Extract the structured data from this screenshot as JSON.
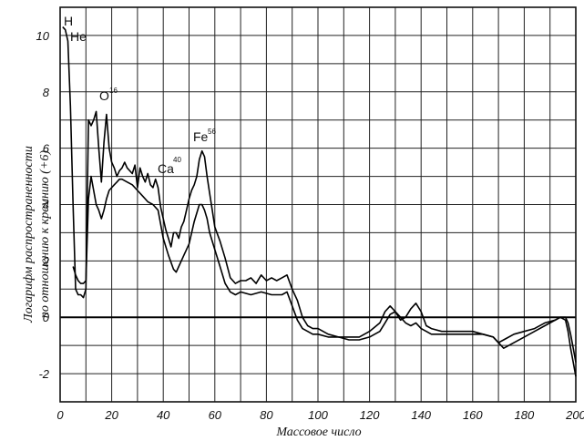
{
  "chart_data": {
    "type": "line",
    "title": "",
    "xlabel": "Массовое число",
    "ylabel": [
      "Логарифм распространенности",
      "по отношению к кремнию (+6)"
    ],
    "xlim": [
      0,
      200
    ],
    "ylim": [
      -3,
      11
    ],
    "x_ticks": [
      0,
      20,
      40,
      60,
      80,
      100,
      120,
      140,
      160,
      180,
      200
    ],
    "y_ticks": [
      10,
      8,
      6,
      4,
      2,
      0,
      -2
    ],
    "grid": true,
    "annotations": [
      {
        "text": "H",
        "sup": ""
      },
      {
        "text": "He",
        "sup": ""
      },
      {
        "text": "O",
        "sup": "16"
      },
      {
        "text": "Ca",
        "sup": "40"
      },
      {
        "text": "Fe",
        "sup": "56"
      }
    ],
    "series": [
      {
        "x": [
          1,
          2,
          3,
          4,
          5,
          6,
          7,
          8,
          9,
          10,
          11,
          12,
          13,
          14,
          15,
          16,
          17,
          18,
          19,
          20,
          21,
          22,
          23,
          24,
          25,
          26,
          27,
          28,
          29,
          30,
          31,
          32,
          33,
          34,
          35,
          36,
          37,
          38,
          39,
          40,
          41,
          42,
          43,
          44,
          45,
          46,
          47,
          48,
          49,
          50,
          51,
          52,
          53,
          54,
          55,
          56,
          57,
          58,
          59,
          60,
          62,
          64,
          66,
          68,
          70,
          72,
          74,
          76,
          78,
          80,
          82,
          84,
          86,
          88,
          90,
          92,
          94,
          96,
          98,
          100,
          104,
          108,
          112,
          116,
          120,
          124,
          126,
          128,
          130,
          132,
          134,
          136,
          138,
          140,
          142,
          144,
          148,
          152,
          156,
          160,
          164,
          168,
          170,
          172,
          176,
          180,
          184,
          188,
          192,
          194,
          196,
          197,
          198,
          199,
          200
        ],
        "values": [
          10.3,
          10.2,
          9.8,
          7.5,
          4.0,
          1.0,
          0.8,
          0.8,
          0.7,
          1.0,
          7.0,
          6.8,
          7.0,
          7.3,
          6.0,
          4.8,
          6.2,
          7.2,
          6.0,
          5.5,
          5.3,
          5.0,
          5.2,
          5.3,
          5.5,
          5.3,
          5.2,
          5.1,
          5.4,
          4.6,
          5.3,
          5.0,
          4.8,
          5.1,
          4.7,
          4.6,
          4.9,
          4.6,
          3.9,
          3.5,
          3.1,
          2.8,
          2.5,
          3.0,
          3.0,
          2.8,
          3.2,
          3.4,
          3.8,
          4.2,
          4.5,
          4.7,
          5.0,
          5.6,
          5.9,
          5.7,
          5.0,
          4.4,
          3.8,
          3.2,
          2.7,
          2.1,
          1.4,
          1.2,
          1.3,
          1.3,
          1.4,
          1.2,
          1.5,
          1.3,
          1.4,
          1.3,
          1.4,
          1.5,
          1.0,
          0.6,
          0.0,
          -0.3,
          -0.4,
          -0.4,
          -0.6,
          -0.7,
          -0.7,
          -0.7,
          -0.5,
          -0.2,
          0.2,
          0.4,
          0.2,
          -0.1,
          0.0,
          0.3,
          0.5,
          0.2,
          -0.3,
          -0.4,
          -0.5,
          -0.5,
          -0.5,
          -0.5,
          -0.6,
          -0.7,
          -0.9,
          -0.8,
          -0.6,
          -0.5,
          -0.4,
          -0.2,
          -0.1,
          0.0,
          -0.1,
          -0.5,
          -1.1,
          -1.6,
          -2.1
        ]
      },
      {
        "x": [
          5,
          6,
          7,
          8,
          9,
          10,
          11,
          12,
          13,
          14,
          15,
          16,
          17,
          18,
          19,
          20,
          21,
          22,
          23,
          24,
          26,
          28,
          30,
          32,
          34,
          36,
          38,
          40,
          42,
          44,
          45,
          46,
          48,
          50,
          52,
          54,
          55,
          56,
          57,
          58,
          60,
          62,
          64,
          66,
          68,
          70,
          74,
          78,
          82,
          86,
          88,
          90,
          92,
          94,
          96,
          98,
          100,
          104,
          108,
          112,
          116,
          120,
          124,
          126,
          128,
          130,
          132,
          134,
          136,
          138,
          140,
          142,
          144,
          148,
          152,
          156,
          160,
          164,
          168,
          170,
          172,
          176,
          180,
          184,
          188,
          192,
          194,
          196,
          197,
          198,
          199,
          200
        ],
        "values": [
          1.8,
          1.5,
          1.3,
          1.2,
          1.2,
          1.3,
          4.2,
          5.0,
          4.5,
          4.0,
          3.8,
          3.5,
          3.8,
          4.2,
          4.5,
          4.6,
          4.7,
          4.8,
          4.9,
          4.9,
          4.8,
          4.7,
          4.5,
          4.3,
          4.1,
          4.0,
          3.8,
          2.8,
          2.2,
          1.7,
          1.6,
          1.8,
          2.2,
          2.6,
          3.4,
          4.0,
          4.0,
          3.8,
          3.5,
          3.0,
          2.4,
          1.8,
          1.2,
          0.9,
          0.8,
          0.9,
          0.8,
          0.9,
          0.8,
          0.8,
          0.9,
          0.4,
          -0.1,
          -0.4,
          -0.5,
          -0.6,
          -0.6,
          -0.7,
          -0.7,
          -0.8,
          -0.8,
          -0.7,
          -0.5,
          -0.2,
          0.1,
          0.2,
          0.0,
          -0.2,
          -0.3,
          -0.2,
          -0.4,
          -0.5,
          -0.6,
          -0.6,
          -0.6,
          -0.6,
          -0.6,
          -0.6,
          -0.7,
          -0.9,
          -1.1,
          -0.9,
          -0.7,
          -0.5,
          -0.3,
          -0.1,
          0.0,
          0.0,
          -0.2,
          -0.6,
          -1.1,
          -1.6
        ]
      }
    ]
  }
}
